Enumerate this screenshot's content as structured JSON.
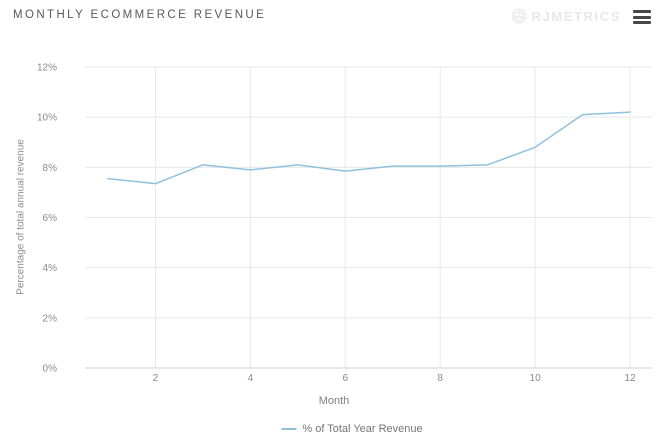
{
  "header": {
    "title": "MONTHLY ECOMMERCE REVENUE",
    "brand": "RJMETRICS"
  },
  "chart_data": {
    "type": "line",
    "title": "MONTHLY ECOMMERCE REVENUE",
    "xlabel": "Month",
    "ylabel": "Percentage of total annual revenue",
    "x": [
      1,
      2,
      3,
      4,
      5,
      6,
      7,
      8,
      9,
      10,
      11,
      12
    ],
    "series": [
      {
        "name": "% of Total Year Revenue",
        "values": [
          7.55,
          7.35,
          8.1,
          7.9,
          8.1,
          7.85,
          8.05,
          8.05,
          8.1,
          8.8,
          10.1,
          10.2
        ]
      }
    ],
    "ylim": [
      0,
      12
    ],
    "ytick_values": [
      0,
      2,
      4,
      6,
      8,
      10,
      12
    ],
    "ytick_labels": [
      "0%",
      "2%",
      "4%",
      "6%",
      "8%",
      "10%",
      "12%"
    ],
    "xtick_values": [
      2,
      4,
      6,
      8,
      10,
      12
    ],
    "grid": true,
    "legend_position": "bottom"
  },
  "colors": {
    "line": "#90c1dc",
    "grid": "#e8e8e8",
    "axis_baseline": "#cfcfcf",
    "tick_label": "#8a8a8a",
    "title_text": "#58595b",
    "brand_text": "#e8e8e8",
    "menu_icon": "#474747",
    "background": "#ffffff"
  }
}
